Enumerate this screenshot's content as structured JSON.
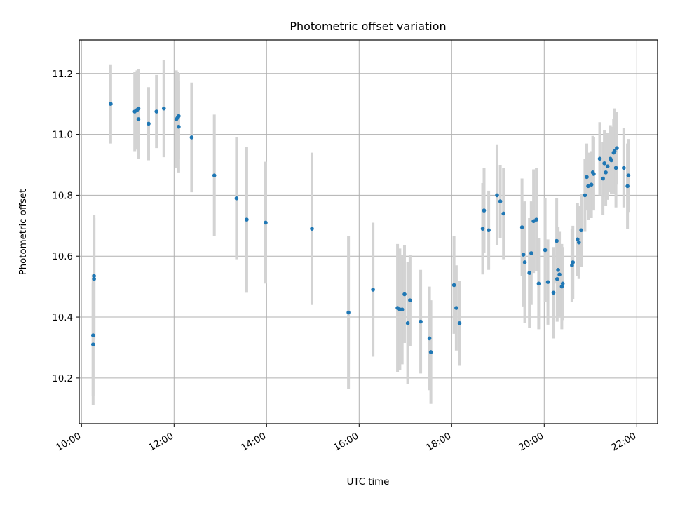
{
  "chart_data": {
    "type": "scatter",
    "title": "Photometric offset variation",
    "xlabel": "UTC time",
    "ylabel": "Photometric offset",
    "x_unit": "hours UTC",
    "xlim": [
      9.95,
      22.45
    ],
    "ylim": [
      10.05,
      11.31
    ],
    "x_ticks": [
      10,
      12,
      14,
      16,
      18,
      20,
      22
    ],
    "x_tick_labels": [
      "10:00",
      "12:00",
      "14:00",
      "16:00",
      "18:00",
      "20:00",
      "22:00"
    ],
    "y_ticks": [
      10.2,
      10.4,
      10.6,
      10.8,
      11.0,
      11.2
    ],
    "y_tick_labels": [
      "10.2",
      "10.4",
      "10.6",
      "10.8",
      "11.0",
      "11.2"
    ],
    "grid": true,
    "point_color": "#1f77b4",
    "errorbar_color": "#d3d3d3",
    "series": [
      {
        "x": [
          10.25,
          10.25,
          10.27,
          10.27,
          10.63,
          11.15,
          11.2,
          11.23,
          11.23,
          11.45,
          11.62,
          11.78,
          12.05,
          12.08,
          12.1,
          12.1,
          12.38,
          12.87,
          13.35,
          13.57,
          13.98,
          14.98,
          15.77,
          16.3,
          16.83,
          16.88,
          16.93,
          16.98,
          17.05,
          17.1,
          17.33,
          17.52,
          17.55,
          18.05,
          18.1,
          18.17,
          18.67,
          18.7,
          18.8,
          18.98,
          19.05,
          19.12,
          19.52,
          19.55,
          19.58,
          19.68,
          19.72,
          19.77,
          19.83,
          19.88,
          20.02,
          20.08,
          20.2,
          20.27,
          20.28,
          20.3,
          20.33,
          20.38,
          20.4,
          20.6,
          20.62,
          20.72,
          20.75,
          20.8,
          20.88,
          20.92,
          20.95,
          21.02,
          21.05,
          21.07,
          21.2,
          21.27,
          21.3,
          21.33,
          21.37,
          21.43,
          21.45,
          21.5,
          21.52,
          21.55,
          21.57,
          21.72,
          21.8,
          21.82
        ],
        "y": [
          10.34,
          10.31,
          10.535,
          10.525,
          11.1,
          11.075,
          11.08,
          11.05,
          11.085,
          11.035,
          11.075,
          11.085,
          11.05,
          11.055,
          11.06,
          11.025,
          10.99,
          10.865,
          10.79,
          10.72,
          10.71,
          10.69,
          10.415,
          10.49,
          10.43,
          10.425,
          10.425,
          10.475,
          10.38,
          10.455,
          10.385,
          10.33,
          10.285,
          10.505,
          10.43,
          10.38,
          10.69,
          10.75,
          10.685,
          10.8,
          10.78,
          10.74,
          10.695,
          10.605,
          10.58,
          10.545,
          10.61,
          10.715,
          10.72,
          10.51,
          10.62,
          10.515,
          10.48,
          10.65,
          10.525,
          10.555,
          10.54,
          10.5,
          10.51,
          10.57,
          10.58,
          10.655,
          10.645,
          10.685,
          10.8,
          10.86,
          10.83,
          10.835,
          10.875,
          10.87,
          10.92,
          10.855,
          10.905,
          10.875,
          10.895,
          10.92,
          10.915,
          10.94,
          10.945,
          10.89,
          10.955,
          10.89,
          10.83,
          10.865
        ],
        "err": [
          0.2,
          0.2,
          0.2,
          0.2,
          0.13,
          0.13,
          0.13,
          0.13,
          0.13,
          0.12,
          0.12,
          0.16,
          0.16,
          0.15,
          0.14,
          0.15,
          0.18,
          0.2,
          0.2,
          0.24,
          0.2,
          0.25,
          0.25,
          0.22,
          0.21,
          0.2,
          0.18,
          0.16,
          0.2,
          0.15,
          0.17,
          0.17,
          0.17,
          0.16,
          0.14,
          0.14,
          0.15,
          0.14,
          0.13,
          0.165,
          0.12,
          0.15,
          0.16,
          0.17,
          0.2,
          0.18,
          0.17,
          0.17,
          0.17,
          0.15,
          0.17,
          0.14,
          0.15,
          0.14,
          0.14,
          0.14,
          0.14,
          0.14,
          0.12,
          0.12,
          0.12,
          0.12,
          0.12,
          0.12,
          0.12,
          0.11,
          0.11,
          0.11,
          0.12,
          0.12,
          0.12,
          0.12,
          0.11,
          0.11,
          0.11,
          0.11,
          0.11,
          0.11,
          0.14,
          0.13,
          0.12,
          0.13,
          0.14,
          0.12
        ]
      }
    ]
  }
}
